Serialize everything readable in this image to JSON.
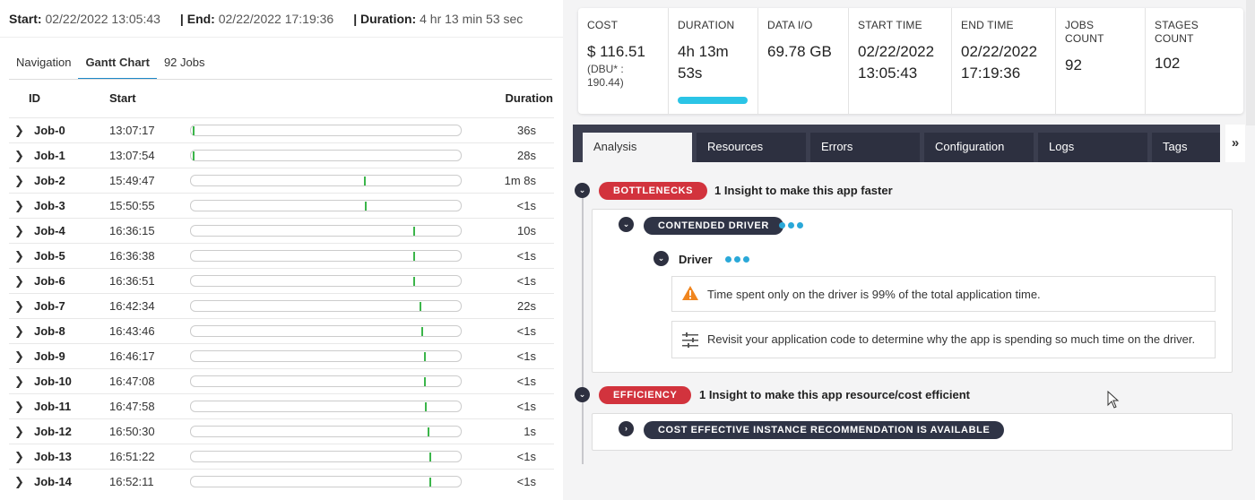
{
  "summary": {
    "start_label": "Start:",
    "start_value": "02/22/2022 13:05:43",
    "end_label": "| End:",
    "end_value": "02/22/2022 17:19:36",
    "duration_label": "| Duration:",
    "duration_value": "4 hr 13 min 53 sec"
  },
  "left_tabs": [
    "Navigation",
    "Gantt Chart",
    "92 Jobs"
  ],
  "table": {
    "headers": {
      "id": "ID",
      "start": "Start",
      "duration": "Duration"
    },
    "rows": [
      {
        "id": "Job-0",
        "start": "13:07:17",
        "duration": "36s",
        "pos": 0.006
      },
      {
        "id": "Job-1",
        "start": "13:07:54",
        "duration": "28s",
        "pos": 0.008
      },
      {
        "id": "Job-2",
        "start": "15:49:47",
        "duration": "1m 8s",
        "pos": 0.645
      },
      {
        "id": "Job-3",
        "start": "15:50:55",
        "duration": "<1s",
        "pos": 0.649
      },
      {
        "id": "Job-4",
        "start": "16:36:15",
        "duration": "10s",
        "pos": 0.828
      },
      {
        "id": "Job-5",
        "start": "16:36:38",
        "duration": "<1s",
        "pos": 0.83
      },
      {
        "id": "Job-6",
        "start": "16:36:51",
        "duration": "<1s",
        "pos": 0.831
      },
      {
        "id": "Job-7",
        "start": "16:42:34",
        "duration": "22s",
        "pos": 0.853
      },
      {
        "id": "Job-8",
        "start": "16:43:46",
        "duration": "<1s",
        "pos": 0.858
      },
      {
        "id": "Job-9",
        "start": "16:46:17",
        "duration": "<1s",
        "pos": 0.868
      },
      {
        "id": "Job-10",
        "start": "16:47:08",
        "duration": "<1s",
        "pos": 0.871
      },
      {
        "id": "Job-11",
        "start": "16:47:58",
        "duration": "<1s",
        "pos": 0.874
      },
      {
        "id": "Job-12",
        "start": "16:50:30",
        "duration": "1s",
        "pos": 0.884
      },
      {
        "id": "Job-13",
        "start": "16:51:22",
        "duration": "<1s",
        "pos": 0.888
      },
      {
        "id": "Job-14",
        "start": "16:52:11",
        "duration": "<1s",
        "pos": 0.891
      }
    ]
  },
  "stats": {
    "cost": {
      "label": "COST",
      "value": "$ 116.51",
      "sub1": "(DBU* :",
      "sub2": "190.44)"
    },
    "duration": {
      "label": "DURATION",
      "value1": "4h 13m",
      "value2": "53s"
    },
    "data_io": {
      "label": "DATA I/O",
      "value": "69.78 GB"
    },
    "start_time": {
      "label": "START TIME",
      "value1": "02/22/2022",
      "value2": "13:05:43"
    },
    "end_time": {
      "label": "END TIME",
      "value1": "02/22/2022",
      "value2": "17:19:36"
    },
    "jobs": {
      "label": "JOBS COUNT",
      "value": "92"
    },
    "stages": {
      "label1": "STAGES",
      "label2": "COUNT",
      "value": "102"
    }
  },
  "right_tabs": [
    "Analysis",
    "Resources",
    "Errors",
    "Configuration",
    "Logs",
    "Tags"
  ],
  "more_tabs": "»",
  "insights": {
    "bottlenecks": {
      "pill": "BOTTLENECKS",
      "title": "1 Insight to make this app faster"
    },
    "contended": {
      "pill": "CONTENDED DRIVER"
    },
    "driver": {
      "title": "Driver"
    },
    "msg1": "Time spent only on the driver is 99% of the total application time.",
    "msg2": "Revisit your application code to determine why the app is spending so much time on the driver.",
    "efficiency": {
      "pill": "EFFICIENCY",
      "title": "1 Insight to make this app resource/cost efficient"
    },
    "recommendation": {
      "pill": "COST EFFECTIVE INSTANCE RECOMMENDATION IS AVAILABLE"
    }
  },
  "colors": {
    "accent": "#1e88c7",
    "tick": "#3bb54a",
    "bottleneck": "#d2333d",
    "dark_pill": "#2f3446",
    "progress": "#2bc4e6"
  }
}
